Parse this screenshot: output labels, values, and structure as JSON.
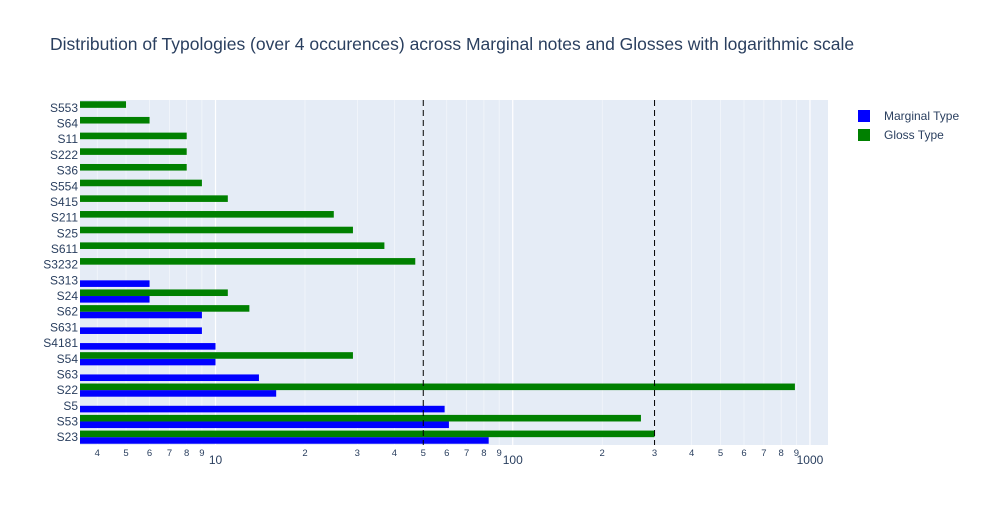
{
  "chart_data": {
    "type": "bar",
    "orientation": "horizontal",
    "title": "Distribution of Typologies (over 4 occurences) across Marginal notes and Glosses with logarithmic scale",
    "xlabel": "",
    "ylabel": "",
    "x_scale": "log",
    "xlim": [
      3.5,
      1150
    ],
    "grid": true,
    "legend_placement": "right",
    "categories": [
      "S553",
      "S64",
      "S11",
      "S222",
      "S36",
      "S554",
      "S415",
      "S211",
      "S25",
      "S611",
      "S3232",
      "S313",
      "S24",
      "S62",
      "S631",
      "S4181",
      "S54",
      "S63",
      "S22",
      "S5",
      "S53",
      "S23"
    ],
    "series": [
      {
        "name": "Marginal Type",
        "color": "#0000ff",
        "values": [
          null,
          null,
          null,
          null,
          null,
          null,
          null,
          null,
          null,
          null,
          null,
          6,
          6,
          9,
          9,
          10,
          10,
          14,
          16,
          59,
          61,
          83
        ]
      },
      {
        "name": "Gloss Type",
        "color": "#008000",
        "values": [
          5,
          6,
          8,
          8,
          8,
          9,
          11,
          25,
          29,
          37,
          47,
          null,
          11,
          13,
          null,
          null,
          29,
          null,
          890,
          null,
          270,
          300
        ]
      }
    ],
    "reference_lines_x": [
      50,
      300
    ],
    "x_major_ticks": [
      {
        "value": 10,
        "label": "10"
      },
      {
        "value": 100,
        "label": "100"
      },
      {
        "value": 1000,
        "label": "1000"
      }
    ],
    "x_minor_ticks": [
      {
        "value": 4,
        "label": "4"
      },
      {
        "value": 5,
        "label": "5"
      },
      {
        "value": 6,
        "label": "6"
      },
      {
        "value": 7,
        "label": "7"
      },
      {
        "value": 8,
        "label": "8"
      },
      {
        "value": 9,
        "label": "9"
      },
      {
        "value": 20,
        "label": "2"
      },
      {
        "value": 30,
        "label": "3"
      },
      {
        "value": 40,
        "label": "4"
      },
      {
        "value": 50,
        "label": "5"
      },
      {
        "value": 60,
        "label": "6"
      },
      {
        "value": 70,
        "label": "7"
      },
      {
        "value": 80,
        "label": "8"
      },
      {
        "value": 90,
        "label": "9"
      },
      {
        "value": 200,
        "label": "2"
      },
      {
        "value": 300,
        "label": "3"
      },
      {
        "value": 400,
        "label": "4"
      },
      {
        "value": 500,
        "label": "5"
      },
      {
        "value": 600,
        "label": "6"
      },
      {
        "value": 700,
        "label": "7"
      },
      {
        "value": 800,
        "label": "8"
      },
      {
        "value": 900,
        "label": "9"
      }
    ]
  }
}
